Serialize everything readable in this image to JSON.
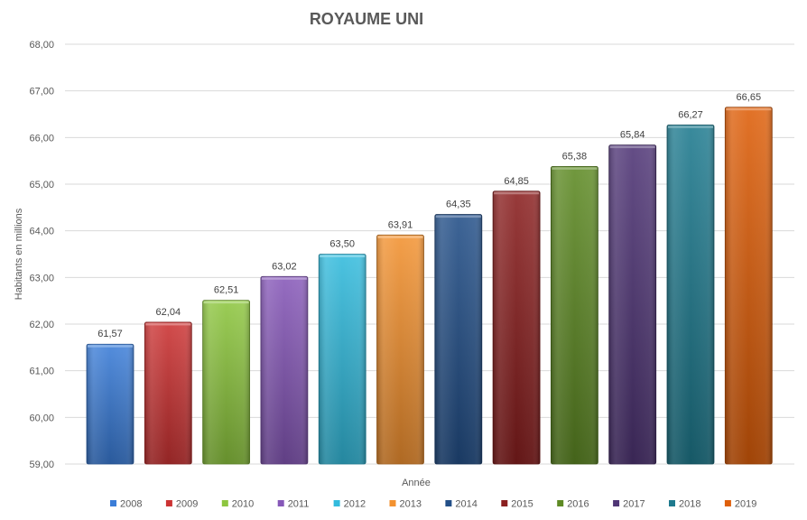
{
  "chart_data": {
    "type": "bar",
    "title": "ROYAUME UNI",
    "xlabel": "Année",
    "ylabel": "Habitants en millions",
    "ylim": [
      59.0,
      68.0
    ],
    "yticks": [
      "59,00",
      "60,00",
      "61,00",
      "62,00",
      "63,00",
      "64,00",
      "65,00",
      "66,00",
      "67,00",
      "68,00"
    ],
    "grid": true,
    "legend_position": "bottom",
    "categories": [
      "2008",
      "2009",
      "2010",
      "2011",
      "2012",
      "2013",
      "2014",
      "2015",
      "2016",
      "2017",
      "2018",
      "2019"
    ],
    "values": [
      61.57,
      62.04,
      62.51,
      63.02,
      63.5,
      63.91,
      64.35,
      64.85,
      65.38,
      65.84,
      66.27,
      66.65
    ],
    "value_labels": [
      "61,57",
      "62,04",
      "62,51",
      "63,02",
      "63,50",
      "63,91",
      "64,35",
      "64,85",
      "65,38",
      "65,84",
      "66,27",
      "66,65"
    ],
    "colors": [
      "#3b7dd8",
      "#cc3333",
      "#8dc63f",
      "#8658b8",
      "#33bbdd",
      "#f39230",
      "#234f88",
      "#8a1f1f",
      "#5e8a24",
      "#4f3575",
      "#1e7a8e",
      "#de5f0a"
    ]
  }
}
